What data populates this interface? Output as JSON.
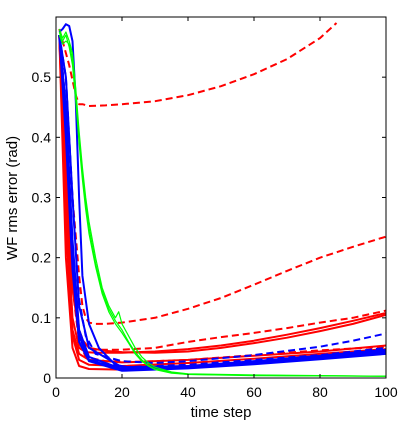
{
  "chart_data": {
    "type": "line",
    "title": "",
    "xlabel": "time step",
    "ylabel": "WF rms error (rad)",
    "xlim": [
      0,
      100
    ],
    "ylim": [
      0,
      0.6
    ],
    "xticks": [
      0,
      20,
      40,
      60,
      80,
      100
    ],
    "yticks": [
      0,
      0.1,
      0.2,
      0.3,
      0.4,
      0.5
    ],
    "xtick_labels": [
      "0",
      "20",
      "40",
      "60",
      "80",
      "100"
    ],
    "ytick_labels": [
      "0",
      "0.1",
      "0.2",
      "0.3",
      "0.4",
      "0.5"
    ],
    "grid": false,
    "legend": "none",
    "colors": {
      "red": "#ff0000",
      "blue": "#0000ff",
      "green": "#00ff00"
    },
    "series": [
      {
        "color": "red",
        "style": "dashed",
        "width": 2,
        "points": [
          [
            1,
            0.58
          ],
          [
            2,
            0.56
          ],
          [
            3,
            0.54
          ],
          [
            4,
            0.52
          ],
          [
            5,
            0.495
          ],
          [
            6,
            0.47
          ],
          [
            7,
            0.455
          ],
          [
            8,
            0.455
          ],
          [
            10,
            0.452
          ],
          [
            15,
            0.453
          ],
          [
            20,
            0.455
          ],
          [
            30,
            0.46
          ],
          [
            40,
            0.47
          ],
          [
            50,
            0.485
          ],
          [
            60,
            0.505
          ],
          [
            70,
            0.53
          ],
          [
            80,
            0.565
          ],
          [
            85,
            0.59
          ]
        ]
      },
      {
        "color": "red",
        "style": "dashed",
        "width": 2,
        "points": [
          [
            1,
            0.57
          ],
          [
            3,
            0.45
          ],
          [
            5,
            0.3
          ],
          [
            7,
            0.17
          ],
          [
            8,
            0.12
          ],
          [
            9,
            0.1
          ],
          [
            10,
            0.092
          ],
          [
            12,
            0.09
          ],
          [
            15,
            0.09
          ],
          [
            20,
            0.092
          ],
          [
            30,
            0.1
          ],
          [
            40,
            0.115
          ],
          [
            50,
            0.133
          ],
          [
            60,
            0.155
          ],
          [
            70,
            0.178
          ],
          [
            80,
            0.2
          ],
          [
            90,
            0.218
          ],
          [
            100,
            0.235
          ]
        ]
      },
      {
        "color": "red",
        "style": "dashed",
        "width": 2,
        "points": [
          [
            1,
            0.57
          ],
          [
            3,
            0.4
          ],
          [
            5,
            0.2
          ],
          [
            7,
            0.08
          ],
          [
            9,
            0.05
          ],
          [
            12,
            0.047
          ],
          [
            20,
            0.047
          ],
          [
            30,
            0.05
          ],
          [
            40,
            0.06
          ],
          [
            50,
            0.068
          ],
          [
            60,
            0.075
          ],
          [
            70,
            0.083
          ],
          [
            80,
            0.092
          ],
          [
            90,
            0.1
          ],
          [
            100,
            0.112
          ]
        ]
      },
      {
        "color": "red",
        "style": "dashed",
        "width": 2,
        "points": [
          [
            1,
            0.57
          ],
          [
            3,
            0.35
          ],
          [
            5,
            0.15
          ],
          [
            7,
            0.06
          ],
          [
            9,
            0.035
          ],
          [
            15,
            0.028
          ],
          [
            25,
            0.027
          ],
          [
            40,
            0.03
          ],
          [
            60,
            0.038
          ],
          [
            80,
            0.046
          ],
          [
            100,
            0.052
          ]
        ]
      },
      {
        "color": "red",
        "style": "solid",
        "width": 2,
        "points": [
          [
            1,
            0.57
          ],
          [
            3,
            0.3
          ],
          [
            5,
            0.1
          ],
          [
            7,
            0.05
          ],
          [
            9,
            0.043
          ],
          [
            12,
            0.042
          ],
          [
            20,
            0.042
          ],
          [
            30,
            0.044
          ],
          [
            40,
            0.048
          ],
          [
            50,
            0.054
          ],
          [
            60,
            0.062
          ],
          [
            70,
            0.072
          ],
          [
            80,
            0.083
          ],
          [
            90,
            0.095
          ],
          [
            100,
            0.108
          ]
        ]
      },
      {
        "color": "red",
        "style": "solid",
        "width": 2,
        "points": [
          [
            1,
            0.57
          ],
          [
            3,
            0.35
          ],
          [
            5,
            0.15
          ],
          [
            7,
            0.07
          ],
          [
            10,
            0.05
          ],
          [
            15,
            0.045
          ],
          [
            20,
            0.043
          ],
          [
            30,
            0.042
          ],
          [
            40,
            0.044
          ],
          [
            50,
            0.05
          ],
          [
            60,
            0.058
          ],
          [
            70,
            0.067
          ],
          [
            80,
            0.078
          ],
          [
            90,
            0.09
          ],
          [
            100,
            0.105
          ]
        ]
      },
      {
        "color": "red",
        "style": "solid",
        "width": 2,
        "points": [
          [
            1,
            0.57
          ],
          [
            3,
            0.3
          ],
          [
            5,
            0.08
          ],
          [
            7,
            0.04
          ],
          [
            10,
            0.03
          ],
          [
            20,
            0.026
          ],
          [
            40,
            0.03
          ],
          [
            60,
            0.037
          ],
          [
            80,
            0.044
          ],
          [
            100,
            0.054
          ]
        ]
      },
      {
        "color": "red",
        "style": "solid",
        "width": 2,
        "points": [
          [
            1,
            0.57
          ],
          [
            3,
            0.25
          ],
          [
            5,
            0.07
          ],
          [
            7,
            0.03
          ],
          [
            10,
            0.022
          ],
          [
            20,
            0.02
          ],
          [
            40,
            0.025
          ],
          [
            60,
            0.032
          ],
          [
            80,
            0.04
          ],
          [
            100,
            0.048
          ]
        ]
      },
      {
        "color": "red",
        "style": "solid",
        "width": 2,
        "points": [
          [
            1,
            0.57
          ],
          [
            3,
            0.2
          ],
          [
            5,
            0.05
          ],
          [
            7,
            0.02
          ],
          [
            10,
            0.015
          ],
          [
            20,
            0.014
          ],
          [
            40,
            0.02
          ],
          [
            60,
            0.027
          ],
          [
            80,
            0.034
          ],
          [
            100,
            0.043
          ]
        ]
      },
      {
        "color": "blue",
        "style": "dashed",
        "width": 2,
        "points": [
          [
            1,
            0.57
          ],
          [
            3,
            0.5
          ],
          [
            5,
            0.3
          ],
          [
            7,
            0.13
          ],
          [
            9,
            0.07
          ],
          [
            12,
            0.04
          ],
          [
            20,
            0.028
          ],
          [
            30,
            0.025
          ],
          [
            40,
            0.028
          ],
          [
            50,
            0.033
          ],
          [
            60,
            0.038
          ],
          [
            70,
            0.045
          ],
          [
            80,
            0.052
          ],
          [
            90,
            0.062
          ],
          [
            100,
            0.074
          ]
        ]
      },
      {
        "color": "blue",
        "style": "dashed",
        "width": 2,
        "points": [
          [
            1,
            0.57
          ],
          [
            3,
            0.45
          ],
          [
            5,
            0.2
          ],
          [
            7,
            0.07
          ],
          [
            10,
            0.03
          ],
          [
            20,
            0.018
          ],
          [
            40,
            0.022
          ],
          [
            60,
            0.03
          ],
          [
            80,
            0.038
          ],
          [
            100,
            0.05
          ]
        ]
      },
      {
        "color": "blue",
        "style": "solid",
        "width": 2,
        "points": [
          [
            1,
            0.575
          ],
          [
            2,
            0.58
          ],
          [
            3,
            0.588
          ],
          [
            4,
            0.585
          ],
          [
            5,
            0.56
          ],
          [
            6,
            0.46
          ],
          [
            7,
            0.3
          ],
          [
            8,
            0.17
          ],
          [
            10,
            0.09
          ],
          [
            13,
            0.05
          ],
          [
            18,
            0.022
          ],
          [
            25,
            0.015
          ],
          [
            40,
            0.018
          ],
          [
            60,
            0.028
          ],
          [
            80,
            0.037
          ],
          [
            100,
            0.047
          ]
        ]
      },
      {
        "color": "blue",
        "style": "solid",
        "width": 2,
        "points": [
          [
            1,
            0.57
          ],
          [
            3,
            0.45
          ],
          [
            5,
            0.23
          ],
          [
            7,
            0.08
          ],
          [
            10,
            0.035
          ],
          [
            20,
            0.015
          ],
          [
            40,
            0.018
          ],
          [
            60,
            0.026
          ],
          [
            80,
            0.034
          ],
          [
            100,
            0.044
          ]
        ]
      },
      {
        "color": "blue",
        "style": "solid",
        "width": 2,
        "points": [
          [
            1,
            0.57
          ],
          [
            3,
            0.4
          ],
          [
            5,
            0.18
          ],
          [
            7,
            0.06
          ],
          [
            10,
            0.028
          ],
          [
            20,
            0.012
          ],
          [
            40,
            0.016
          ],
          [
            60,
            0.023
          ],
          [
            80,
            0.031
          ],
          [
            100,
            0.04
          ]
        ]
      },
      {
        "color": "blue",
        "style": "solid",
        "width": 2,
        "points": [
          [
            1,
            0.57
          ],
          [
            3,
            0.5
          ],
          [
            5,
            0.3
          ],
          [
            7,
            0.12
          ],
          [
            10,
            0.05
          ],
          [
            20,
            0.018
          ],
          [
            40,
            0.02
          ],
          [
            60,
            0.028
          ],
          [
            80,
            0.036
          ],
          [
            100,
            0.046
          ]
        ]
      },
      {
        "color": "blue",
        "style": "solid",
        "width": 2,
        "points": [
          [
            1,
            0.57
          ],
          [
            3,
            0.42
          ],
          [
            5,
            0.2
          ],
          [
            7,
            0.07
          ],
          [
            10,
            0.03
          ],
          [
            20,
            0.014
          ],
          [
            40,
            0.017
          ],
          [
            60,
            0.025
          ],
          [
            80,
            0.033
          ],
          [
            100,
            0.042
          ]
        ]
      },
      {
        "color": "green",
        "style": "solid",
        "width": 1.2,
        "points": [
          [
            1,
            0.58
          ],
          [
            2,
            0.565
          ],
          [
            3,
            0.575
          ],
          [
            4,
            0.56
          ],
          [
            5,
            0.54
          ],
          [
            6,
            0.48
          ],
          [
            7,
            0.41
          ],
          [
            8,
            0.35
          ],
          [
            9,
            0.3
          ],
          [
            10,
            0.26
          ],
          [
            12,
            0.2
          ],
          [
            14,
            0.15
          ],
          [
            16,
            0.12
          ],
          [
            18,
            0.1
          ],
          [
            19,
            0.11
          ],
          [
            20,
            0.09
          ],
          [
            22,
            0.07
          ],
          [
            24,
            0.05
          ],
          [
            26,
            0.035
          ],
          [
            28,
            0.025
          ],
          [
            30,
            0.018
          ],
          [
            35,
            0.01
          ],
          [
            40,
            0.007
          ],
          [
            60,
            0.005
          ],
          [
            80,
            0.004
          ],
          [
            100,
            0.003
          ]
        ]
      },
      {
        "color": "green",
        "style": "solid",
        "width": 1.2,
        "points": [
          [
            1,
            0.575
          ],
          [
            2,
            0.56
          ],
          [
            3,
            0.57
          ],
          [
            4,
            0.55
          ],
          [
            5,
            0.52
          ],
          [
            6,
            0.46
          ],
          [
            7,
            0.39
          ],
          [
            8,
            0.33
          ],
          [
            9,
            0.28
          ],
          [
            10,
            0.24
          ],
          [
            12,
            0.185
          ],
          [
            14,
            0.14
          ],
          [
            16,
            0.11
          ],
          [
            18,
            0.09
          ],
          [
            20,
            0.075
          ],
          [
            22,
            0.058
          ],
          [
            24,
            0.04
          ],
          [
            26,
            0.028
          ],
          [
            28,
            0.02
          ],
          [
            30,
            0.014
          ],
          [
            35,
            0.008
          ],
          [
            40,
            0.006
          ],
          [
            60,
            0.004
          ],
          [
            100,
            0.003
          ]
        ]
      },
      {
        "color": "green",
        "style": "solid",
        "width": 1.2,
        "points": [
          [
            1,
            0.57
          ],
          [
            2,
            0.555
          ],
          [
            3,
            0.56
          ],
          [
            4,
            0.555
          ],
          [
            5,
            0.53
          ],
          [
            6,
            0.47
          ],
          [
            7,
            0.4
          ],
          [
            8,
            0.34
          ],
          [
            9,
            0.29
          ],
          [
            10,
            0.25
          ],
          [
            12,
            0.19
          ],
          [
            14,
            0.145
          ],
          [
            16,
            0.115
          ],
          [
            18,
            0.095
          ],
          [
            20,
            0.08
          ],
          [
            22,
            0.06
          ],
          [
            24,
            0.043
          ],
          [
            26,
            0.03
          ],
          [
            28,
            0.021
          ],
          [
            30,
            0.015
          ],
          [
            35,
            0.009
          ],
          [
            40,
            0.006
          ],
          [
            70,
            0.004
          ],
          [
            100,
            0.003
          ]
        ]
      }
    ]
  }
}
